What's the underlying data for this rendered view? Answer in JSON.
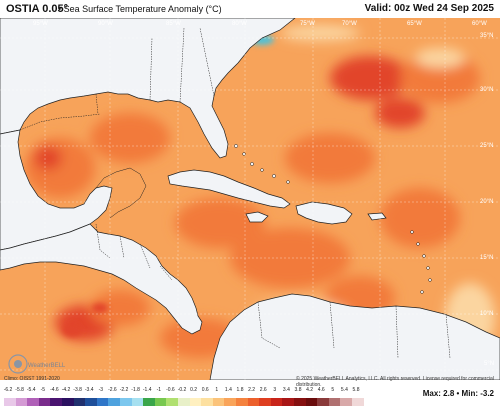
{
  "header": {
    "model": "OSTIA 0.05°",
    "product": "• Sea Surface Temperature Anomaly (°C)",
    "valid": "Valid: 00z Wed 24 Sep 2025"
  },
  "map": {
    "longitude_labels": [
      "95°W",
      "90°W",
      "85°W",
      "80°W",
      "75°W",
      "70°W",
      "65°W",
      "60°W"
    ],
    "latitude_labels": [
      "35°N",
      "30°N",
      "25°N",
      "20°N",
      "15°N",
      "10°N",
      "5°N"
    ],
    "colors": {
      "land": "#f2f4f7",
      "ocean_base": "#f7a35a",
      "ocean_warm": "#f27a3a",
      "ocean_hot": "#e2452a",
      "ocean_cool": "#fbd5a0",
      "ocean_cold": "#4fc1d8",
      "coastline": "#222222",
      "grid": "#ffffff"
    },
    "watermark": "WeatherBELL"
  },
  "footer": {
    "climo": "Climo: OISST 1991-2020",
    "copyright": "© 2025 WeatherBELL Analytics, LLC. All rights reserved. License required for commercial distribution.",
    "maxmin": "Max: 2.8 • Min: -3.2"
  },
  "colorbar": {
    "labels": [
      "-6.2",
      "-5.8",
      "-5.4",
      "-5",
      "-4.6",
      "-4.2",
      "-3.8",
      "-3.4",
      "-3",
      "-2.6",
      "-2.2",
      "-1.8",
      "-1.4",
      "-1",
      "-0.6",
      "-0.2",
      "0.2",
      "0.6",
      "1",
      "1.4",
      "1.8",
      "2.2",
      "2.6",
      "3",
      "3.4",
      "3.8",
      "4.2",
      "4.6",
      "5",
      "5.4",
      "5.8"
    ],
    "colors": [
      "#e8c8e8",
      "#d49ad4",
      "#b060b8",
      "#7a2c8c",
      "#4a1470",
      "#2a1060",
      "#20306e",
      "#1e4f9a",
      "#2f76c8",
      "#4ea2de",
      "#7cc7ee",
      "#a6e0f0",
      "#3aa64a",
      "#78c850",
      "#b0e070",
      "#e8f0c8",
      "#fff0c0",
      "#fde0a0",
      "#fbc37a",
      "#f9a45a",
      "#f4823e",
      "#ec602c",
      "#de3e20",
      "#c8241a",
      "#a81616",
      "#861010",
      "#6a0c0c",
      "#8a3a3a",
      "#b07070",
      "#d8a8a8",
      "#f0d8d8"
    ]
  }
}
